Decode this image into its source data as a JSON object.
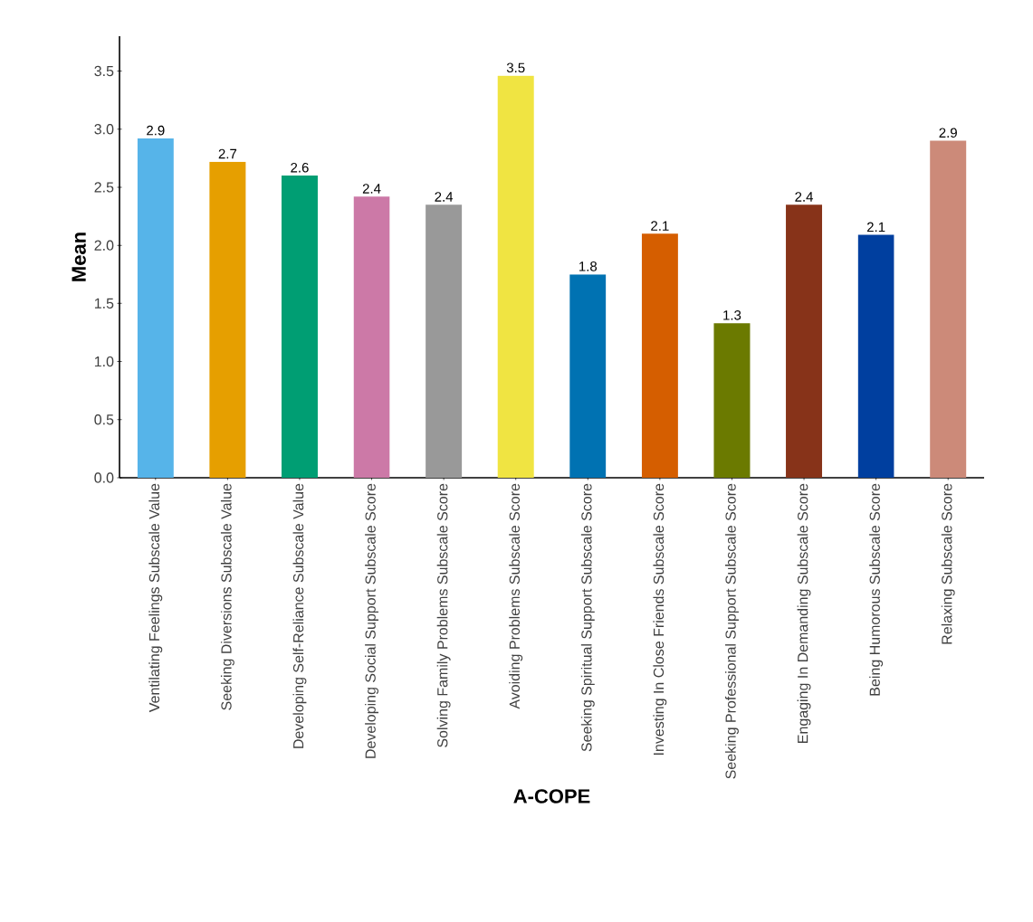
{
  "chart_data": {
    "type": "bar",
    "xlabel": "A-COPE",
    "ylabel": "Mean",
    "categories": [
      "Ventilating Feelings Subscale Value",
      "Seeking Diversions Subscale Value",
      "Developing Self-Reliance Subscale Value",
      "Developing Social Support Subscale Score",
      "Solving Family Problems Subscale Score",
      "Avoiding Problems Subscale Score",
      "Seeking Spiritual Support Subscale Score",
      "Investing In Close Friends Subscale Score",
      "Seeking Professional Support Subscale Score",
      "Engaging In Demanding Subscale Score",
      "Being Humorous Subscale Score",
      "Relaxing Subscale Score"
    ],
    "values": [
      2.92,
      2.72,
      2.6,
      2.42,
      2.35,
      3.46,
      1.75,
      2.1,
      1.33,
      2.35,
      2.09,
      2.9
    ],
    "value_labels": [
      "2.9",
      "2.7",
      "2.6",
      "2.4",
      "2.4",
      "3.5",
      "1.8",
      "2.1",
      "1.3",
      "2.4",
      "2.1",
      "2.9"
    ],
    "colors": [
      "#56b4e9",
      "#e69f00",
      "#009e73",
      "#cc79a7",
      "#999999",
      "#f0e442",
      "#0072b2",
      "#d55e00",
      "#6b7a00",
      "#873319",
      "#003f9f",
      "#cc8a79"
    ],
    "ylim": [
      0,
      3.8
    ],
    "yticks": [
      {
        "value": 0,
        "label": "0.0"
      },
      0.5,
      {
        "value": 1,
        "label": "1.0"
      },
      1.5,
      {
        "value": 2,
        "label": "2.0"
      },
      2.5,
      {
        "value": 3,
        "label": "3.0"
      },
      3.5
    ],
    "grid": false
  }
}
